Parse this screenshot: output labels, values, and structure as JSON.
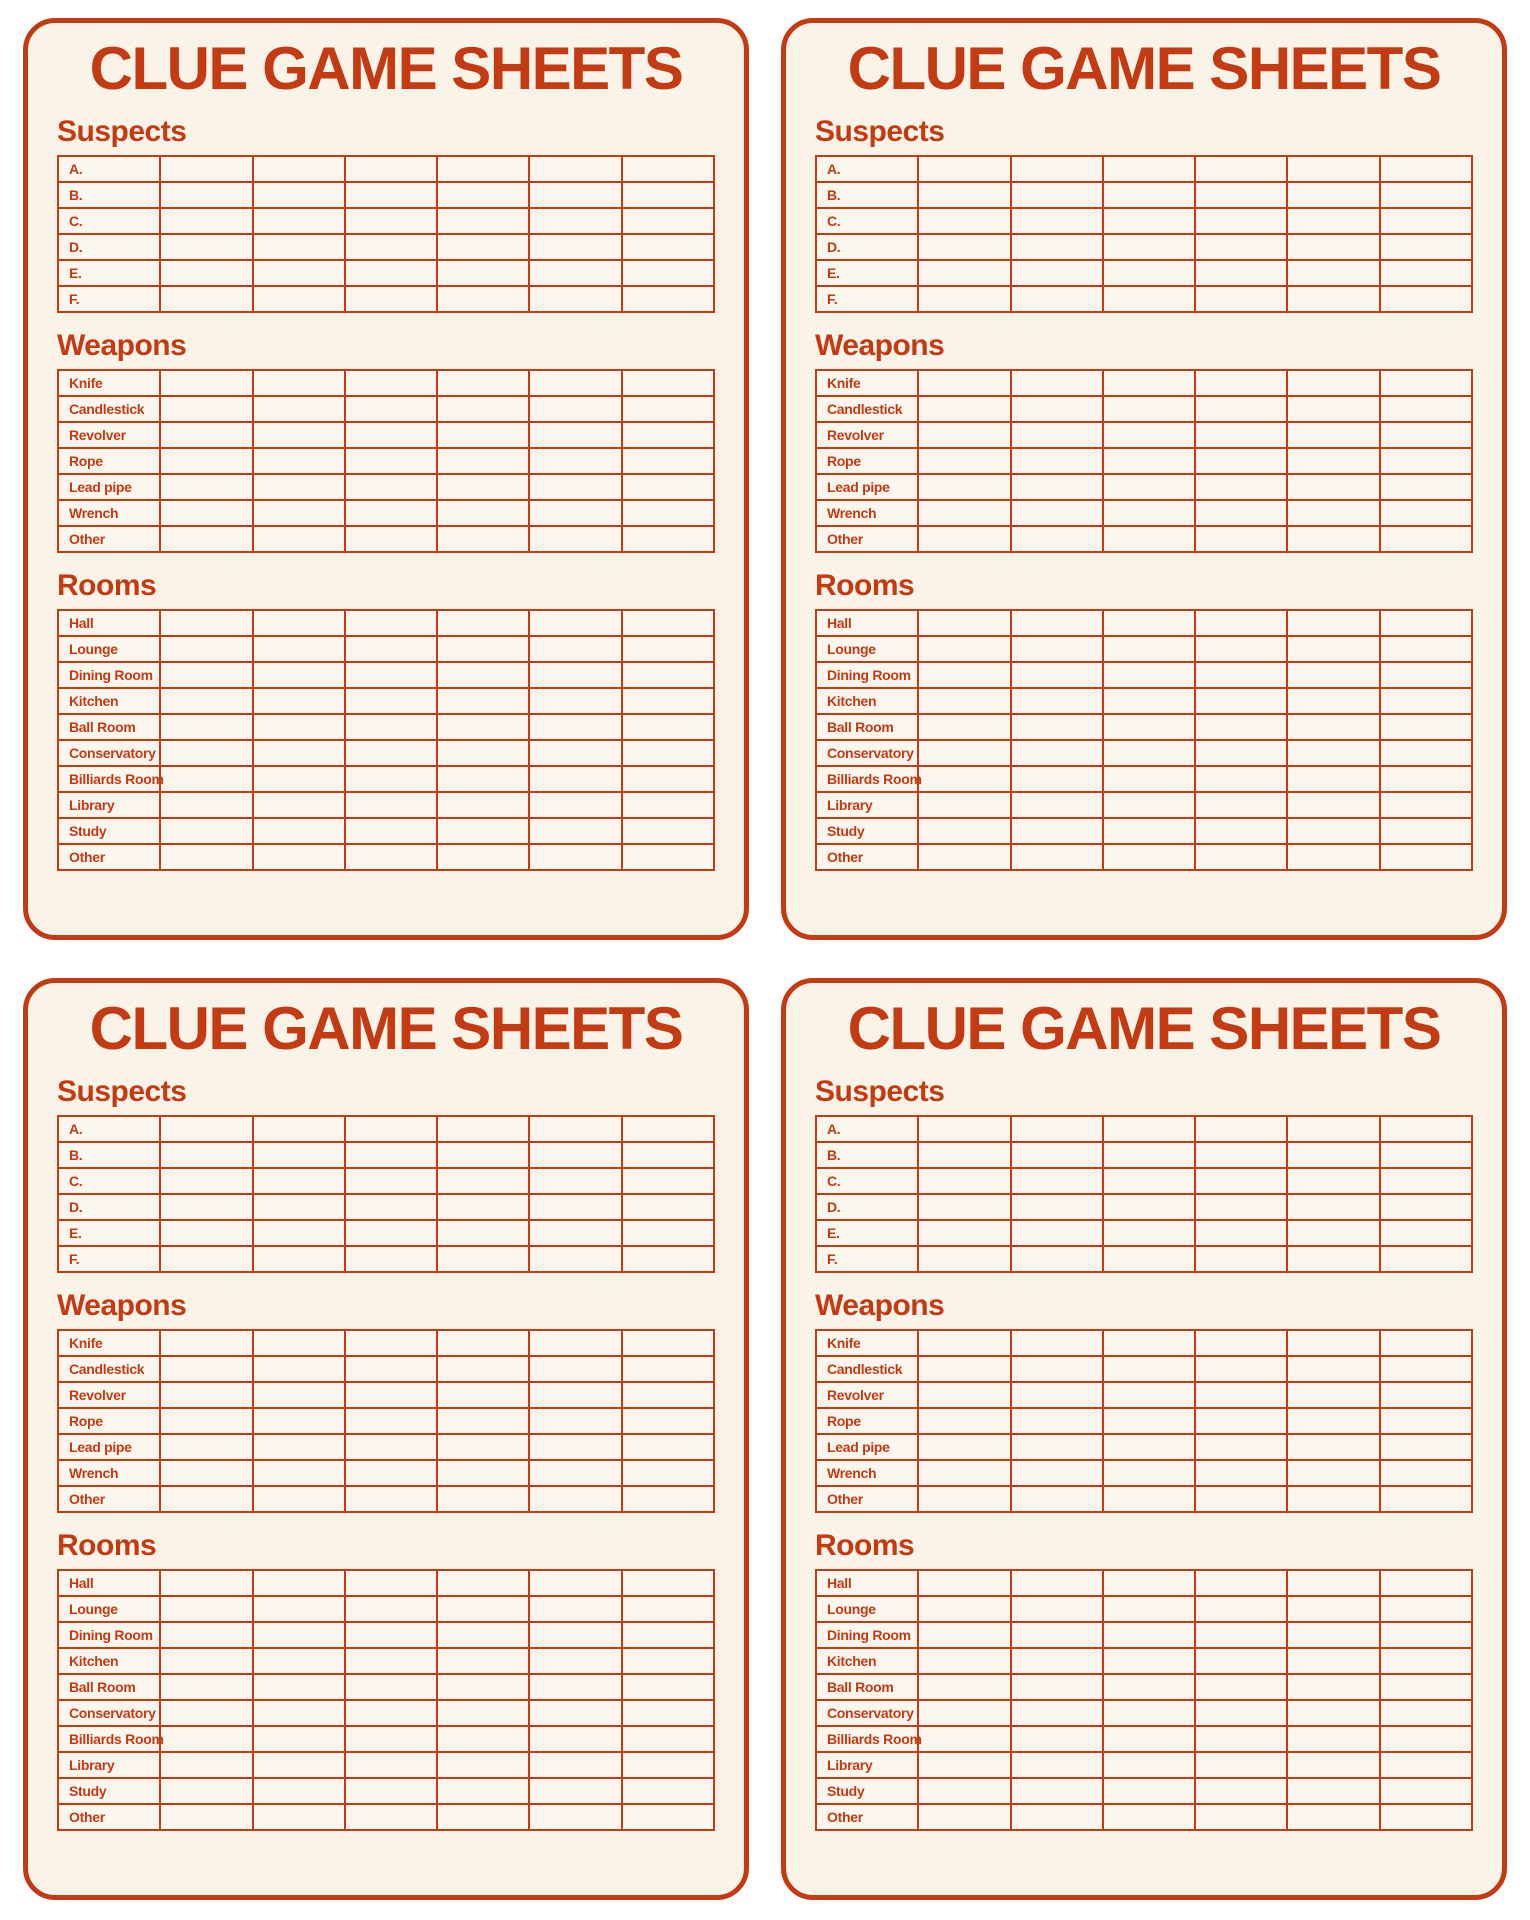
{
  "page": {
    "card_count": 4,
    "colors": {
      "accent": "#C43A13",
      "card_background": "#FAF3E8",
      "cell_background": "#FCF7EE",
      "page_background": "#FFFFFF"
    }
  },
  "card": {
    "title": "CLUE GAME SHEETS",
    "data_columns": 6,
    "sections": [
      {
        "heading": "Suspects",
        "rows": [
          "A.",
          "B.",
          "C.",
          "D.",
          "E.",
          "F."
        ]
      },
      {
        "heading": "Weapons",
        "rows": [
          "Knife",
          "Candlestick",
          "Revolver",
          "Rope",
          "Lead pipe",
          "Wrench",
          "Other"
        ]
      },
      {
        "heading": "Rooms",
        "rows": [
          "Hall",
          "Lounge",
          "Dining Room",
          "Kitchen",
          "Ball Room",
          "Conservatory",
          "Billiards Room",
          "Library",
          "Study",
          "Other"
        ]
      }
    ]
  }
}
